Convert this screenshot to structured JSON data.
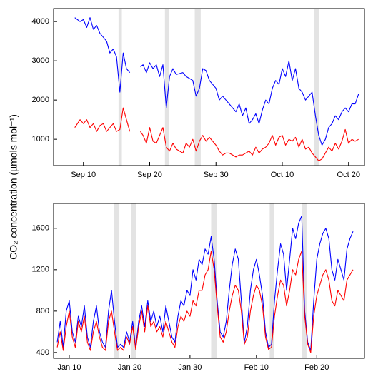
{
  "ylabel": "CO₂ concentration (µmols mol⁻¹)",
  "chart_data": [
    {
      "type": "line",
      "xlim": [
        5.5,
        52.4
      ],
      "ylim": [
        330,
        4330
      ],
      "xticks": [
        {
          "value": 10,
          "label": "Sep 10"
        },
        {
          "value": 20,
          "label": "Sep 20"
        },
        {
          "value": 30,
          "label": "Sep 30"
        },
        {
          "value": 40,
          "label": "Oct 10"
        },
        {
          "value": 50,
          "label": "Oct 20"
        }
      ],
      "yticks": [
        1000,
        2000,
        3000,
        4000
      ],
      "shaded_spans": [
        [
          15.3,
          15.8
        ],
        [
          22.3,
          22.9
        ],
        [
          26.8,
          27.7
        ],
        [
          44.8,
          45.6
        ]
      ],
      "span_color": "#e3e3e3",
      "x": [
        8.7,
        9.5,
        10,
        10.5,
        11,
        11.5,
        12,
        12.5,
        13,
        13.5,
        14,
        14.5,
        15,
        15.5,
        16,
        16.5,
        17,
        17.7,
        18.6,
        19,
        19.5,
        20,
        20.5,
        21,
        21.5,
        22,
        22.5,
        23,
        23.5,
        24,
        25,
        25.5,
        26,
        26.5,
        27,
        27.5,
        28,
        28.5,
        29,
        30,
        30.5,
        31,
        31.5,
        32,
        33,
        33.5,
        34,
        34.5,
        35,
        35.5,
        36,
        36.5,
        37,
        37.5,
        38,
        38.5,
        39,
        39.5,
        40,
        40.5,
        41,
        41.5,
        42,
        42.5,
        43,
        43.5,
        44,
        44.5,
        45,
        45.5,
        46,
        46.5,
        47,
        47.5,
        48,
        48.5,
        49,
        49.5,
        50,
        50.5,
        51,
        51.5
      ],
      "series": [
        {
          "color": "#0000ff",
          "values": [
            4100,
            4000,
            4050,
            3850,
            4100,
            3800,
            3900,
            3700,
            3600,
            3500,
            3200,
            3300,
            3100,
            2200,
            3200,
            2800,
            2700,
            null,
            2850,
            2900,
            2700,
            2950,
            2800,
            2900,
            2600,
            2900,
            1800,
            2600,
            2800,
            2650,
            2700,
            2600,
            2550,
            2500,
            2100,
            2300,
            2800,
            2750,
            2500,
            2300,
            2000,
            2100,
            2000,
            1900,
            1700,
            1900,
            1600,
            1800,
            1400,
            1500,
            1650,
            1400,
            1750,
            2000,
            1900,
            2300,
            2500,
            2400,
            2800,
            2600,
            3000,
            2500,
            2800,
            2300,
            2200,
            2000,
            2100,
            2200,
            1600,
            1100,
            850,
            1000,
            1300,
            1400,
            1600,
            1500,
            1700,
            1800,
            1700,
            1900,
            1900,
            2150
          ]
        },
        {
          "color": "#ff0000",
          "values": [
            1300,
            1500,
            1400,
            1500,
            1300,
            1400,
            1200,
            1350,
            1400,
            1200,
            1300,
            1400,
            1200,
            1250,
            1800,
            1500,
            1200,
            null,
            1200,
            1100,
            900,
            1300,
            950,
            900,
            1100,
            1300,
            800,
            700,
            900,
            750,
            650,
            900,
            800,
            1000,
            700,
            950,
            1100,
            950,
            1050,
            850,
            700,
            600,
            650,
            650,
            550,
            600,
            600,
            650,
            700,
            600,
            800,
            650,
            750,
            800,
            900,
            1100,
            850,
            1050,
            1100,
            850,
            1000,
            950,
            1050,
            800,
            1000,
            750,
            800,
            650,
            550,
            450,
            500,
            650,
            800,
            700,
            900,
            750,
            950,
            1250,
            900,
            1000,
            950,
            1000
          ]
        }
      ]
    },
    {
      "type": "line",
      "xlim": [
        7.4,
        58.9
      ],
      "ylim": [
        344,
        1840
      ],
      "xticks": [
        {
          "value": 10,
          "label": "Jan 10"
        },
        {
          "value": 20,
          "label": "Jan 20"
        },
        {
          "value": 30,
          "label": "Jan 30"
        },
        {
          "value": 41,
          "label": "Feb 10"
        },
        {
          "value": 51,
          "label": "Feb 20"
        }
      ],
      "yticks": [
        400,
        800,
        1200,
        1600
      ],
      "shaded_spans": [
        [
          17.4,
          18.3
        ],
        [
          20.2,
          21.1
        ],
        [
          33.5,
          34.5
        ],
        [
          43.2,
          43.9
        ],
        [
          48.5,
          49.3
        ]
      ],
      "span_color": "#e3e3e3",
      "x": [
        8,
        8.5,
        9,
        9.5,
        10,
        10.5,
        11,
        11.5,
        12,
        12.5,
        13,
        13.5,
        14,
        14.5,
        15,
        15.5,
        16,
        16.5,
        17,
        17.5,
        18,
        18.5,
        19,
        19.5,
        20,
        20.5,
        21,
        21.5,
        22,
        22.5,
        23,
        23.5,
        24,
        24.5,
        25,
        25.5,
        26,
        26.5,
        27,
        27.5,
        28,
        28.5,
        29,
        29.5,
        30,
        30.5,
        31,
        31.5,
        32,
        32.5,
        33,
        33.5,
        34,
        34.5,
        35,
        35.5,
        36,
        36.5,
        37,
        37.5,
        38,
        38.5,
        39,
        39.5,
        40,
        40.5,
        41,
        41.5,
        42,
        42.5,
        43,
        43.5,
        44,
        44.5,
        45,
        45.5,
        46,
        46.5,
        47,
        47.5,
        48,
        48.5,
        49,
        49.5,
        50,
        50.5,
        51,
        51.5,
        52,
        52.5,
        53,
        53.5,
        54,
        54.5,
        55,
        55.5,
        56,
        56.5,
        57
      ],
      "series": [
        {
          "color": "#0000ff",
          "values": [
            500,
            700,
            450,
            800,
            900,
            600,
            500,
            750,
            650,
            850,
            550,
            450,
            700,
            850,
            600,
            500,
            450,
            800,
            1000,
            700,
            450,
            480,
            450,
            600,
            500,
            700,
            450,
            700,
            850,
            650,
            900,
            700,
            800,
            650,
            750,
            600,
            850,
            700,
            550,
            500,
            750,
            900,
            850,
            1000,
            950,
            1200,
            1100,
            1300,
            1250,
            1400,
            1350,
            1520,
            1300,
            900,
            600,
            550,
            700,
            1000,
            1250,
            1400,
            1300,
            900,
            500,
            650,
            1000,
            1200,
            1300,
            1150,
            950,
            600,
            450,
            480,
            900,
            1200,
            1450,
            1350,
            1000,
            1300,
            1600,
            1500,
            1650,
            1720,
            800,
            500,
            420,
            900,
            1300,
            1450,
            1550,
            1600,
            1500,
            1200,
            1100,
            1300,
            1200,
            1100,
            1400,
            1500,
            1570
          ]
        },
        {
          "color": "#ff0000",
          "values": [
            450,
            600,
            420,
            650,
            800,
            550,
            450,
            700,
            600,
            750,
            500,
            420,
            600,
            700,
            550,
            450,
            420,
            700,
            800,
            600,
            420,
            450,
            420,
            550,
            480,
            650,
            430,
            650,
            800,
            600,
            850,
            650,
            700,
            600,
            650,
            550,
            700,
            600,
            500,
            450,
            650,
            750,
            700,
            800,
            750,
            900,
            850,
            1000,
            1000,
            1150,
            1200,
            1380,
            1200,
            850,
            550,
            500,
            600,
            800,
            950,
            1050,
            1000,
            800,
            480,
            550,
            800,
            950,
            1050,
            1000,
            850,
            550,
            430,
            450,
            750,
            950,
            1100,
            1050,
            850,
            1000,
            1200,
            1150,
            1300,
            1380,
            750,
            480,
            400,
            750,
            950,
            1050,
            1150,
            1200,
            1100,
            900,
            850,
            1000,
            950,
            900,
            1100,
            1150,
            1200
          ]
        }
      ]
    }
  ]
}
